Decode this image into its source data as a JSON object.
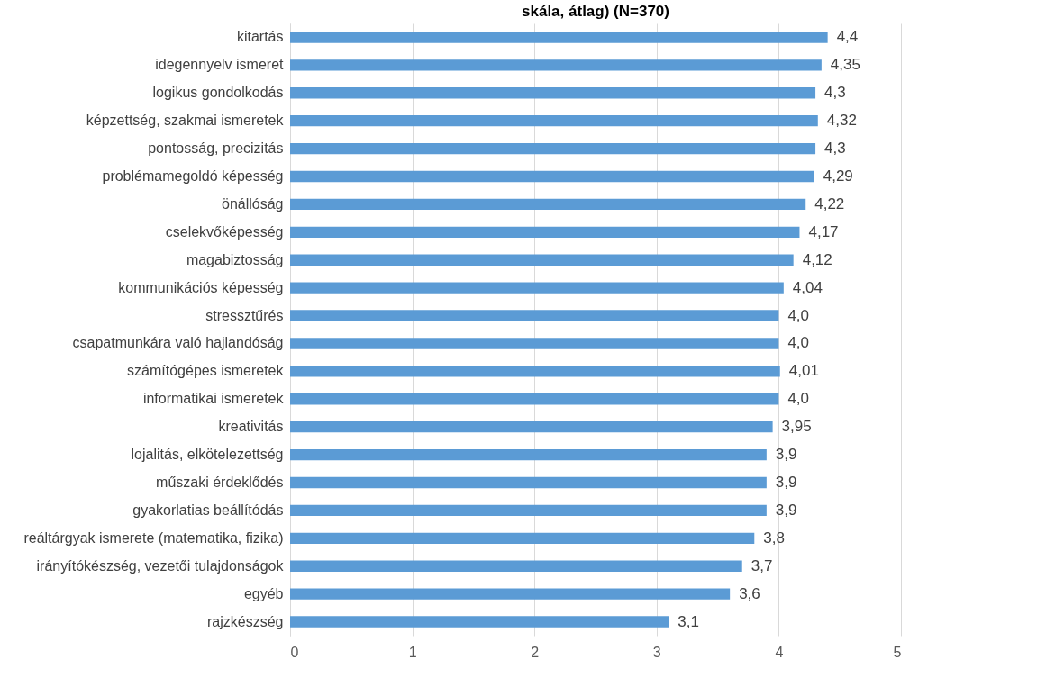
{
  "chart_data": {
    "type": "bar",
    "orientation": "horizontal",
    "title": "skála, átlag) (N=370)",
    "categories": [
      "kitartás",
      "idegennyelv ismeret",
      "logikus gondolkodás",
      "képzettség, szakmai ismeretek",
      "pontosság, precizitás",
      "problémamegoldó képesség",
      "önállóság",
      "cselekvőképesség",
      "magabiztosság",
      "kommunikációs képesség",
      "stressztűrés",
      "csapatmunkára való hajlandóság",
      "számítógépes ismeretek",
      "informatikai ismeretek",
      "kreativitás",
      "lojalitás, elkötelezettség",
      "műszaki érdeklődés",
      "gyakorlatias beállítódás",
      "reáltárgyak ismerete (matematika, fizika)",
      "irányítókészség, vezetői tulajdonságok",
      "egyéb",
      "rajzkészség"
    ],
    "values": [
      4.4,
      4.35,
      4.3,
      4.32,
      4.3,
      4.29,
      4.22,
      4.17,
      4.12,
      4.04,
      4.0,
      4.0,
      4.01,
      4.0,
      3.95,
      3.9,
      3.9,
      3.9,
      3.8,
      3.7,
      3.6,
      3.1
    ],
    "value_labels": [
      "4,4",
      "4,35",
      "4,3",
      "4,32",
      "4,3",
      "4,29",
      "4,22",
      "4,17",
      "4,12",
      "4,04",
      "4,0",
      "4,0",
      "4,01",
      "4,0",
      "3,95",
      "3,9",
      "3,9",
      "3,9",
      "3,8",
      "3,7",
      "3,6",
      "3,1"
    ],
    "color": "#5b9bd5",
    "xlim": [
      0,
      5
    ],
    "xticks": [
      0,
      1,
      2,
      3,
      4,
      5
    ],
    "grid": "x"
  }
}
